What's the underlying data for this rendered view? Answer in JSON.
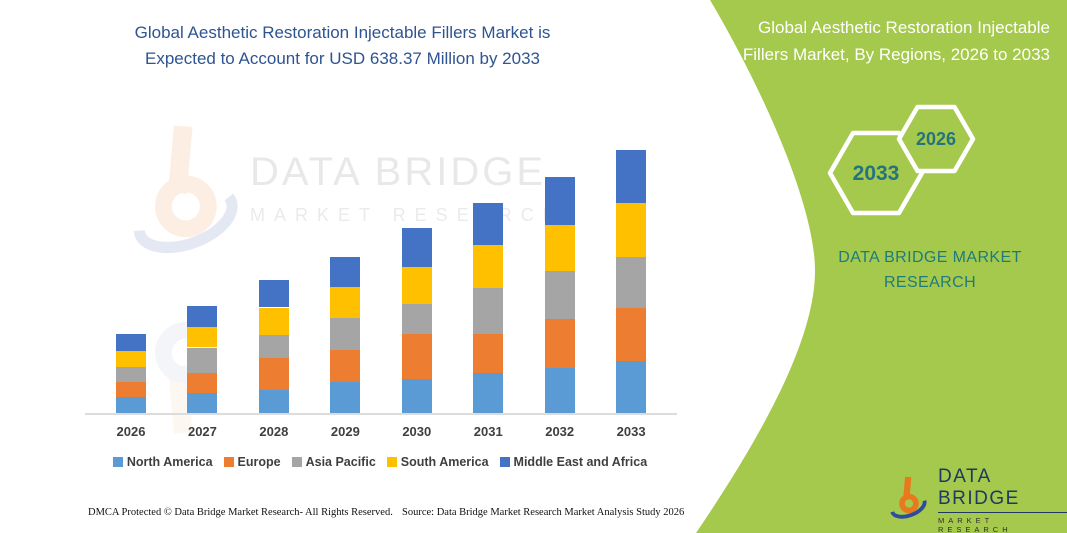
{
  "header": {
    "lines": [
      "Global Aesthetic Restoration Injectable Fillers Market is",
      "Expected to Account for USD 638.37 Million by 2033"
    ]
  },
  "sidebar": {
    "title": "Global Aesthetic Restoration Injectable Fillers Market, By Regions, 2026 to 2033",
    "hex_back_label": "2033",
    "hex_front_label": "2026",
    "brand": "DATA BRIDGE MARKET RESEARCH",
    "panel_color": "#A5C94C",
    "hex_text_color": "#25737E"
  },
  "watermark": {
    "brand_top": "DATA BRIDGE",
    "brand_bottom": "MARKET RESEARCH"
  },
  "corner_logo": {
    "brand_top": "DATA BRIDGE",
    "brand_bottom": "MARKET RESEARCH"
  },
  "footer": {
    "left": "DMCA Protected © Data Bridge Market Research-  All Rights Reserved.",
    "right": "Source: Data Bridge Market Research  Market Analysis Study 2026"
  },
  "chart_data": {
    "type": "bar",
    "stacked": true,
    "title": "Global Aesthetic Restoration Injectable Fillers Market is Expected to Account for USD 638.37 Million by 2033",
    "unit": "USD Million (values estimated from bar heights; 2033 total labeled as 638.37)",
    "categories": [
      "2026",
      "2027",
      "2028",
      "2029",
      "2030",
      "2031",
      "2032",
      "2033"
    ],
    "series": [
      {
        "name": "North America",
        "color": "#5B9BD5",
        "values": [
          39,
          49,
          56,
          75,
          83,
          97,
          109,
          126
        ]
      },
      {
        "name": "Europe",
        "color": "#ED7D31",
        "values": [
          36,
          49,
          78,
          78,
          109,
          95,
          119,
          129
        ]
      },
      {
        "name": "Asia Pacific",
        "color": "#A5A5A5",
        "values": [
          36,
          61,
          56,
          78,
          73,
          112,
          117,
          124
        ]
      },
      {
        "name": "South America",
        "color": "#FFC000",
        "values": [
          39,
          49,
          66,
          75,
          90,
          104,
          112,
          131
        ]
      },
      {
        "name": "Middle East and Africa",
        "color": "#4472C4",
        "values": [
          41,
          51,
          66,
          73,
          95,
          102,
          117,
          128.37
        ]
      }
    ],
    "totals": [
      191,
      259,
      322,
      379,
      450,
      510,
      574,
      638.37
    ],
    "ylim": [
      0,
      700
    ],
    "grid": false,
    "y_axis_labels_visible": false,
    "legend_position": "bottom"
  }
}
